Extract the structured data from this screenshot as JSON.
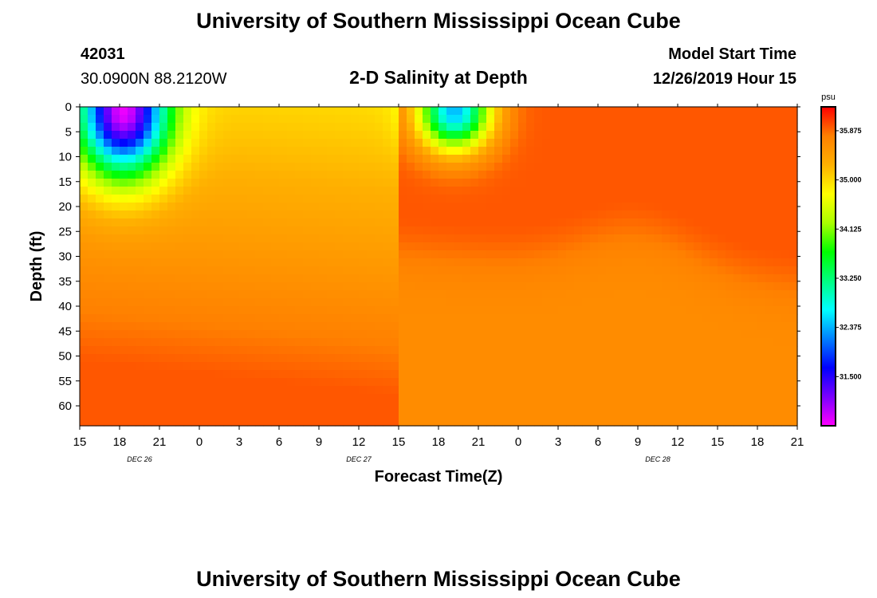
{
  "header": {
    "title_top": "University of Southern Mississippi Ocean Cube",
    "title_bottom": "University of Southern Mississippi Ocean Cube",
    "station_id": "42031",
    "station_coords": "30.0900N 88.2120W",
    "plot_title": "2-D Salinity at Depth",
    "model_start_label": "Model Start Time",
    "model_start_value": "12/26/2019 Hour 15"
  },
  "chart_data": {
    "type": "heatmap",
    "title": "2-D Salinity at Depth",
    "xlabel": "Forecast Time(Z)",
    "ylabel": "Depth (ft)",
    "x_hours": [
      0,
      3,
      6,
      9,
      12,
      15,
      18,
      21,
      24,
      27,
      30,
      33,
      36,
      39,
      42,
      45,
      48,
      51,
      54
    ],
    "x_tick_labels": [
      "15",
      "18",
      "21",
      "0",
      "3",
      "6",
      "9",
      "12",
      "15",
      "18",
      "21",
      "0",
      "3",
      "6",
      "9",
      "12",
      "15",
      "18",
      "21"
    ],
    "x_date_labels": [
      {
        "label": "DEC 26",
        "hour": 4.5
      },
      {
        "label": "DEC 27",
        "hour": 21
      },
      {
        "label": "DEC 28",
        "hour": 43.5
      }
    ],
    "ylim": [
      0,
      64
    ],
    "y_ticks": [
      0,
      5,
      10,
      15,
      20,
      25,
      30,
      35,
      40,
      45,
      50,
      55,
      60
    ],
    "colorbar": {
      "unit": "psu",
      "min": 30.625,
      "max": 36.3,
      "ticks": [
        31.5,
        32.375,
        33.25,
        34.125,
        35.0,
        35.875
      ],
      "tick_labels": [
        "31.500",
        "32.375",
        "33.250",
        "34.125",
        "35.000",
        "35.875"
      ],
      "colors": [
        "#ff00ff",
        "#7a00ff",
        "#0000ff",
        "#0080ff",
        "#00ffff",
        "#00ff80",
        "#00ff00",
        "#aaff00",
        "#ffff00",
        "#ffb000",
        "#ff8000",
        "#ff0000"
      ]
    },
    "salinity_features": [
      {
        "label": "fresh lens 1",
        "hour": 3.3,
        "depth": 1,
        "min_value": 30.7,
        "width_hours": 6,
        "depth_extent": 17
      },
      {
        "label": "fresh lens 2",
        "hour": 28.2,
        "depth": 1,
        "min_value": 32.4,
        "width_hours": 6,
        "depth_extent": 11
      }
    ]
  }
}
